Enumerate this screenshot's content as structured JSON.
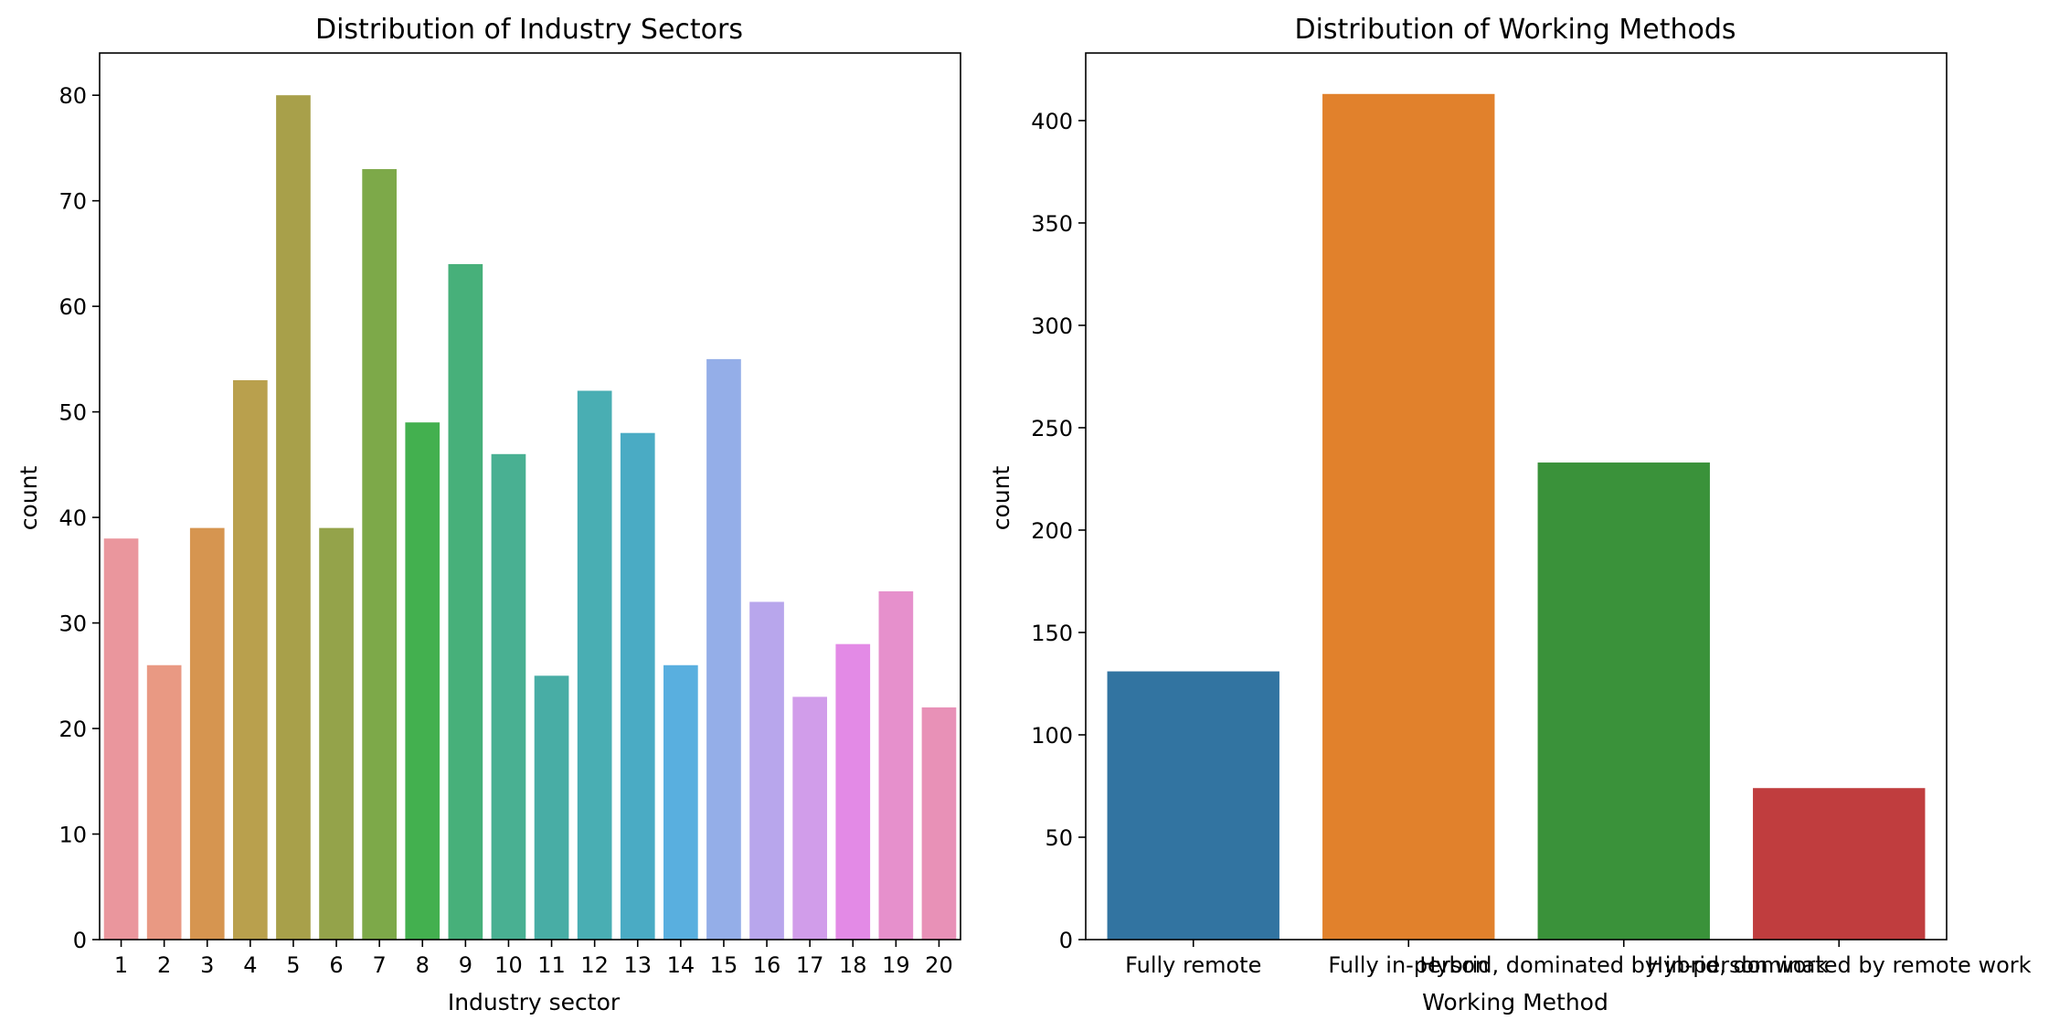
{
  "chart_data": [
    {
      "type": "bar",
      "title": "Distribution of Industry Sectors",
      "xlabel": "Industry sector",
      "ylabel": "count",
      "ylim": [
        0,
        84
      ],
      "yticks": [
        0,
        10,
        20,
        30,
        40,
        50,
        60,
        70,
        80
      ],
      "grid": false,
      "categories": [
        "1",
        "2",
        "3",
        "4",
        "5",
        "6",
        "7",
        "8",
        "9",
        "10",
        "11",
        "12",
        "13",
        "14",
        "15",
        "16",
        "17",
        "18",
        "19",
        "20"
      ],
      "values": [
        38,
        26,
        39,
        53,
        80,
        39,
        73,
        49,
        64,
        46,
        25,
        52,
        48,
        26,
        55,
        32,
        23,
        28,
        33,
        22
      ],
      "colors": [
        "#ea969d",
        "#e99983",
        "#d69550",
        "#b9a04d",
        "#a8a04a",
        "#94a34a",
        "#7da949",
        "#43b04f",
        "#47b07a",
        "#49b092",
        "#48ada5",
        "#49aeb3",
        "#4aabc4",
        "#59afdf",
        "#94aee8",
        "#b8a6ec",
        "#d19dea",
        "#e38ae6",
        "#e690cc",
        "#e891b7"
      ]
    },
    {
      "type": "bar",
      "title": "Distribution of Working Methods",
      "xlabel": "Working Method",
      "ylabel": "count",
      "ylim": [
        0,
        433
      ],
      "yticks": [
        0,
        50,
        100,
        150,
        200,
        250,
        300,
        350,
        400
      ],
      "grid": false,
      "categories": [
        "Fully remote",
        "Fully in-person",
        "Hybrid, dominated by in-person work",
        "Hybrid, dominated by remote work"
      ],
      "values": [
        131,
        413,
        233,
        74
      ],
      "colors": [
        "#3274a1",
        "#e1812c",
        "#3a923a",
        "#c03d3e"
      ]
    }
  ]
}
